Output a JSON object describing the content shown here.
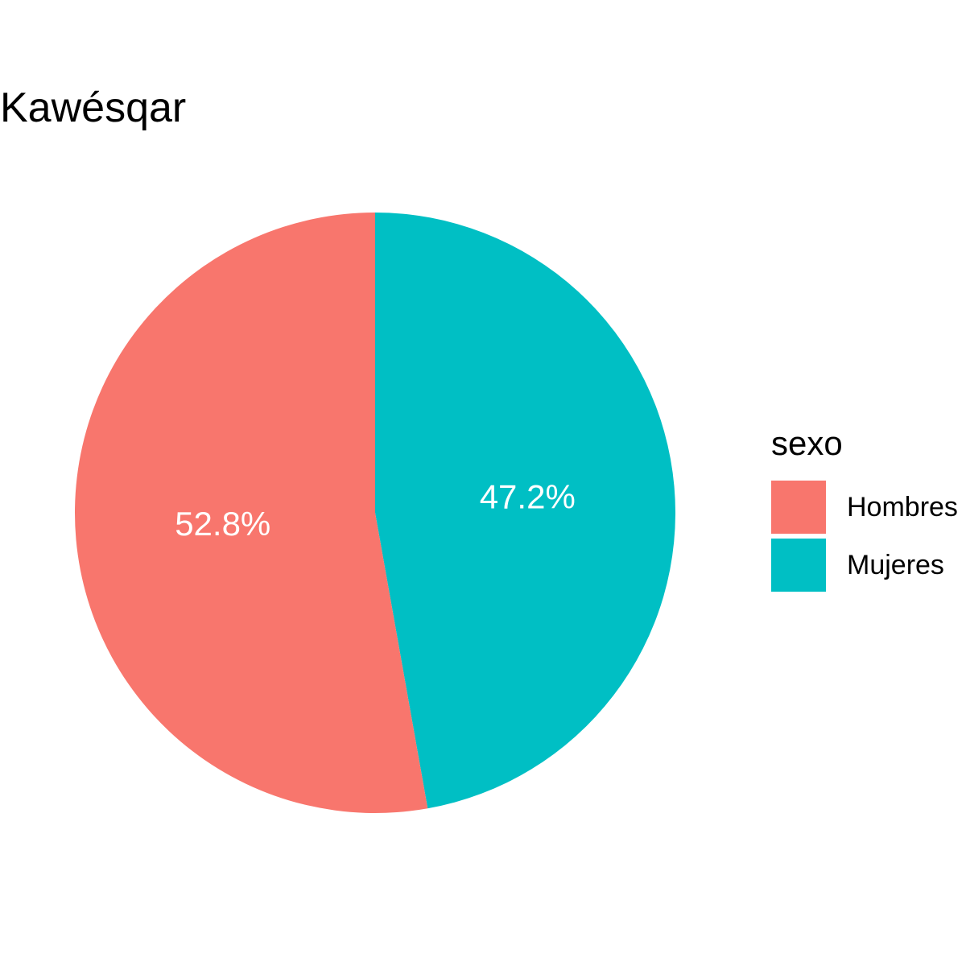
{
  "chart_data": {
    "type": "pie",
    "title": "Kawésqar",
    "categories": [
      "Hombres",
      "Mujeres"
    ],
    "values": [
      52.8,
      47.2
    ],
    "labels": [
      "52.8%",
      "47.2%"
    ],
    "colors": [
      "#F8766D",
      "#00BFC4"
    ],
    "legend": {
      "title": "sexo",
      "placement": "right"
    }
  }
}
